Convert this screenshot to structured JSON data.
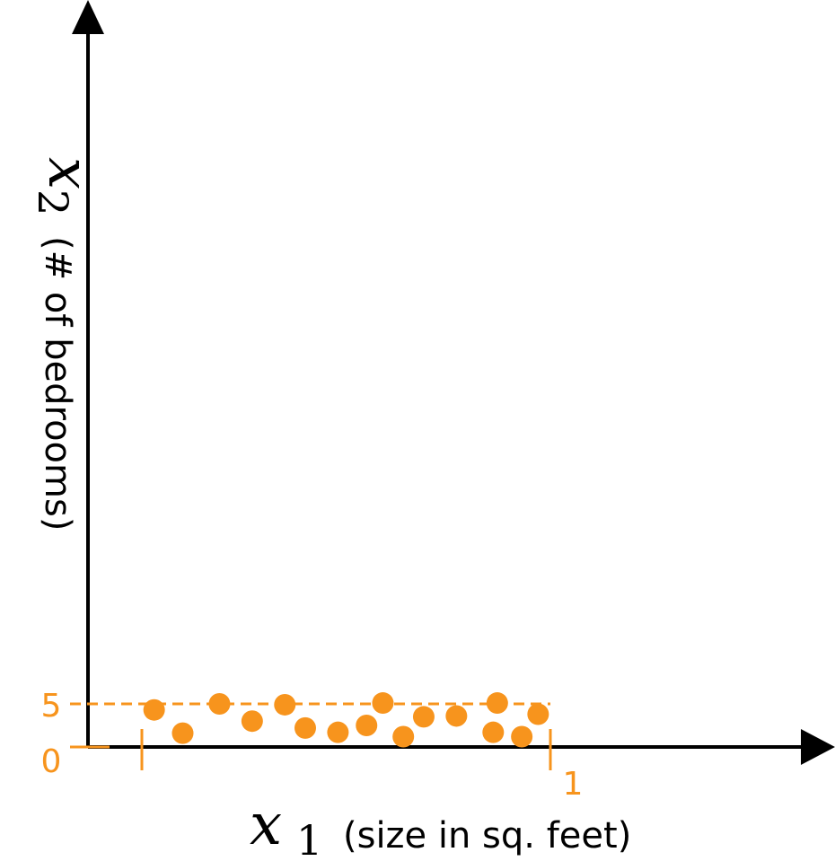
{
  "chart_data": {
    "type": "scatter",
    "title": "",
    "xlabel": {
      "variable": "x",
      "subscript": "1",
      "description": "(size in sq. feet)"
    },
    "ylabel": {
      "variable": "x",
      "subscript": "2",
      "description": "(# of bedrooms)"
    },
    "x_ticks": [
      {
        "value": 0,
        "label": ""
      },
      {
        "value": 1,
        "label": "1"
      }
    ],
    "y_ticks": [
      {
        "value": 0,
        "label": "0"
      },
      {
        "value": 5,
        "label": "5"
      }
    ],
    "xlim": [
      -0.13,
      1.65
    ],
    "ylim": [
      0,
      55
    ],
    "accent_color": "#F7941D",
    "points": [
      {
        "x": 0.03,
        "y": 4.3
      },
      {
        "x": 0.1,
        "y": 1.6
      },
      {
        "x": 0.19,
        "y": 5.0
      },
      {
        "x": 0.27,
        "y": 3.0
      },
      {
        "x": 0.35,
        "y": 4.9
      },
      {
        "x": 0.4,
        "y": 2.2
      },
      {
        "x": 0.48,
        "y": 1.7
      },
      {
        "x": 0.55,
        "y": 2.5
      },
      {
        "x": 0.59,
        "y": 5.1
      },
      {
        "x": 0.64,
        "y": 1.2
      },
      {
        "x": 0.69,
        "y": 3.5
      },
      {
        "x": 0.77,
        "y": 3.6
      },
      {
        "x": 0.87,
        "y": 5.1
      },
      {
        "x": 0.86,
        "y": 1.7
      },
      {
        "x": 0.93,
        "y": 1.2
      },
      {
        "x": 0.97,
        "y": 3.8
      }
    ]
  }
}
